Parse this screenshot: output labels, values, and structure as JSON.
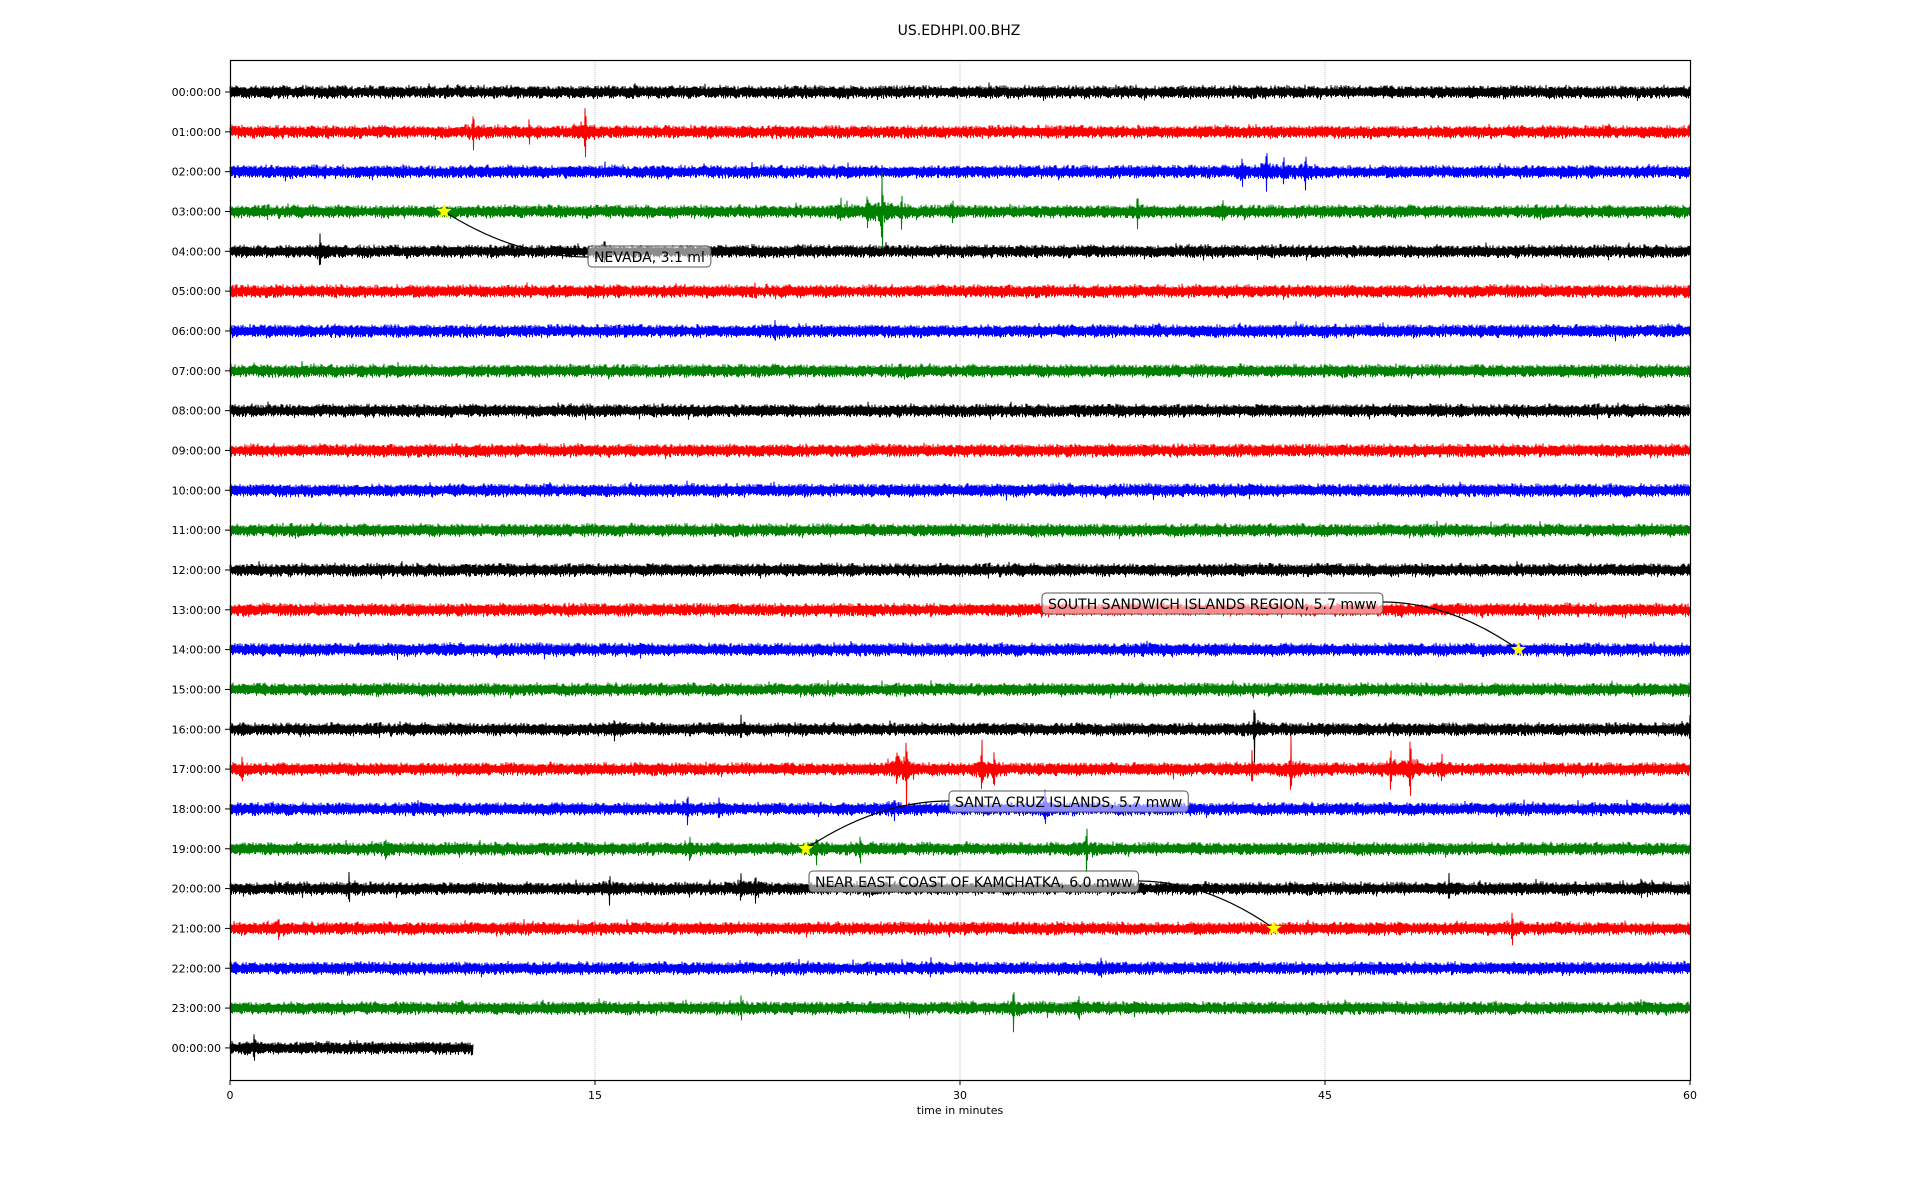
{
  "chart_data": {
    "type": "line",
    "title": "US.EDHPI.00.BHZ",
    "xlabel": "time in minutes",
    "ylabel": "",
    "xlim": [
      0,
      60
    ],
    "xticks": [
      "0",
      "15",
      "30",
      "45",
      "60"
    ],
    "xtick_values": [
      0,
      15,
      30,
      45,
      60
    ],
    "grid": "vertical dotted",
    "row_labels": [
      "00:00:00",
      "01:00:00",
      "02:00:00",
      "03:00:00",
      "04:00:00",
      "05:00:00",
      "06:00:00",
      "07:00:00",
      "08:00:00",
      "09:00:00",
      "10:00:00",
      "11:00:00",
      "12:00:00",
      "13:00:00",
      "14:00:00",
      "15:00:00",
      "16:00:00",
      "17:00:00",
      "18:00:00",
      "19:00:00",
      "20:00:00",
      "21:00:00",
      "22:00:00",
      "23:00:00",
      "00:00:00"
    ],
    "row_colors": [
      "#000000",
      "#ff0000",
      "#0000ff",
      "#008000"
    ],
    "last_row_end_minute": 10,
    "events": [
      [
        1,
        10.0,
        0.5
      ],
      [
        1,
        12.3,
        0.3
      ],
      [
        1,
        14.6,
        1.0
      ],
      [
        2,
        41.6,
        0.5
      ],
      [
        2,
        42.6,
        0.8
      ],
      [
        2,
        43.3,
        0.5
      ],
      [
        2,
        44.2,
        0.6
      ],
      [
        3,
        25.1,
        0.4
      ],
      [
        3,
        26.2,
        0.6
      ],
      [
        3,
        26.8,
        1.6
      ],
      [
        3,
        27.6,
        0.5
      ],
      [
        3,
        29.7,
        0.4
      ],
      [
        3,
        37.3,
        0.5
      ],
      [
        3,
        40.8,
        0.3
      ],
      [
        4,
        3.7,
        0.5
      ],
      [
        4,
        15.4,
        0.4
      ],
      [
        6,
        22.4,
        0.3
      ],
      [
        16,
        15.8,
        0.3
      ],
      [
        16,
        21.0,
        0.3
      ],
      [
        16,
        42.1,
        1.1
      ],
      [
        16,
        60.0,
        0.4
      ],
      [
        17,
        0.5,
        0.4
      ],
      [
        17,
        27.4,
        0.6
      ],
      [
        17,
        27.8,
        1.2
      ],
      [
        17,
        30.9,
        1.0
      ],
      [
        17,
        31.4,
        0.6
      ],
      [
        17,
        42.0,
        0.5
      ],
      [
        17,
        43.6,
        1.0
      ],
      [
        17,
        47.7,
        0.8
      ],
      [
        17,
        48.5,
        1.5
      ],
      [
        17,
        49.8,
        0.5
      ],
      [
        18,
        18.8,
        0.4
      ],
      [
        18,
        20.1,
        0.4
      ],
      [
        18,
        27.3,
        0.4
      ],
      [
        18,
        33.5,
        0.6
      ],
      [
        19,
        6.4,
        0.4
      ],
      [
        19,
        18.9,
        0.4
      ],
      [
        19,
        24.1,
        0.5
      ],
      [
        19,
        25.9,
        0.4
      ],
      [
        19,
        35.2,
        0.8
      ],
      [
        20,
        4.9,
        0.5
      ],
      [
        20,
        15.6,
        0.4
      ],
      [
        20,
        21.0,
        0.5
      ],
      [
        20,
        21.6,
        0.6
      ],
      [
        20,
        50.1,
        0.4
      ],
      [
        20,
        58.0,
        0.3
      ],
      [
        21,
        2.0,
        0.3
      ],
      [
        21,
        52.7,
        0.6
      ],
      [
        22,
        28.8,
        0.3
      ],
      [
        22,
        35.8,
        0.3
      ],
      [
        23,
        21.0,
        0.3
      ],
      [
        23,
        32.2,
        0.6
      ],
      [
        23,
        34.9,
        0.4
      ],
      [
        24,
        1.0,
        0.4
      ]
    ],
    "annotations": [
      {
        "label": "NEVADA, 3.1 ml",
        "row": 3,
        "minute": 8.8
      },
      {
        "label": "SOUTH SANDWICH ISLANDS REGION, 5.7 mww",
        "row": 14,
        "minute": 52.95
      },
      {
        "label": "SANTA CRUZ ISLANDS, 5.7 mww",
        "row": 19,
        "minute": 23.66
      },
      {
        "label": "NEAR EAST COAST OF KAMCHATKA, 6.0 mww",
        "row": 21,
        "minute": 42.9
      }
    ],
    "marker_color": "#ffff00"
  }
}
